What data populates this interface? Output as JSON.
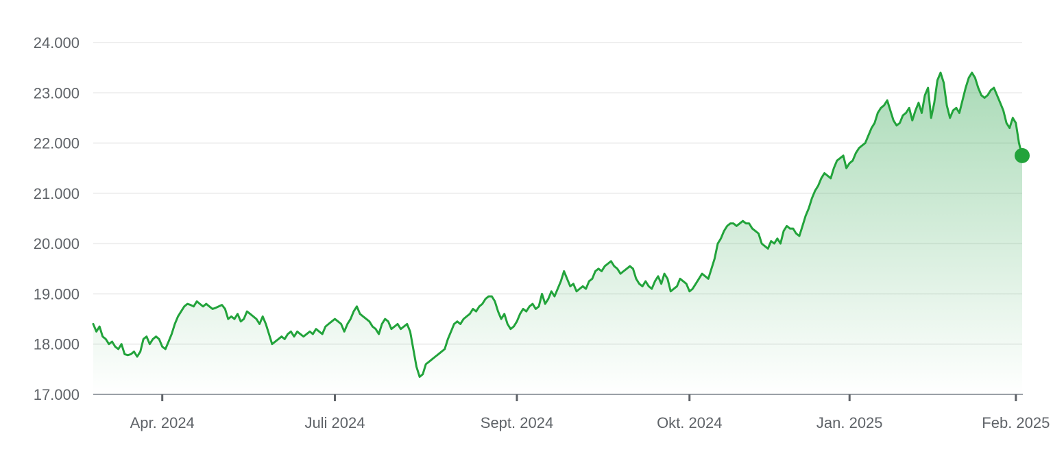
{
  "chart_data": {
    "type": "area",
    "title": "",
    "xlabel": "",
    "ylabel": "",
    "ylim": [
      17000,
      24000
    ],
    "grid": true,
    "legend": "none",
    "colors": {
      "line": "#22a33b",
      "fill": "#34a853",
      "grid": "#efefef",
      "axis": "#9aa0a6",
      "text": "#5f6368"
    },
    "y_ticks": [
      {
        "value": 17000,
        "label": "17.000"
      },
      {
        "value": 18000,
        "label": "18.000"
      },
      {
        "value": 19000,
        "label": "19.000"
      },
      {
        "value": 20000,
        "label": "20.000"
      },
      {
        "value": 21000,
        "label": "21.000"
      },
      {
        "value": 22000,
        "label": "22.000"
      },
      {
        "value": 23000,
        "label": "23.000"
      },
      {
        "value": 24000,
        "label": "24.000"
      }
    ],
    "x_ticks": [
      {
        "index": 22,
        "label": "Apr. 2024"
      },
      {
        "index": 77,
        "label": "Juli 2024"
      },
      {
        "index": 135,
        "label": "Sept. 2024"
      },
      {
        "index": 190,
        "label": "Okt. 2024"
      },
      {
        "index": 241,
        "label": "Jan. 2025"
      },
      {
        "index": 294,
        "label": "Feb. 2025"
      }
    ],
    "series": [
      {
        "values": [
          18400,
          18250,
          18350,
          18150,
          18100,
          18000,
          18050,
          17950,
          17900,
          18000,
          17800,
          17780,
          17800,
          17850,
          17750,
          17850,
          18100,
          18150,
          18000,
          18100,
          18150,
          18100,
          17950,
          17900,
          18050,
          18200,
          18400,
          18550,
          18650,
          18750,
          18800,
          18780,
          18750,
          18850,
          18800,
          18750,
          18800,
          18750,
          18700,
          18720,
          18750,
          18780,
          18700,
          18500,
          18550,
          18500,
          18600,
          18450,
          18500,
          18650,
          18600,
          18550,
          18500,
          18400,
          18550,
          18400,
          18200,
          18000,
          18050,
          18100,
          18150,
          18100,
          18200,
          18250,
          18150,
          18250,
          18200,
          18150,
          18200,
          18250,
          18200,
          18300,
          18250,
          18200,
          18350,
          18400,
          18450,
          18500,
          18450,
          18400,
          18250,
          18400,
          18500,
          18650,
          18750,
          18600,
          18550,
          18500,
          18450,
          18350,
          18300,
          18200,
          18400,
          18500,
          18450,
          18300,
          18350,
          18400,
          18300,
          18350,
          18400,
          18250,
          17900,
          17550,
          17350,
          17400,
          17600,
          17650,
          17700,
          17750,
          17800,
          17850,
          17900,
          18100,
          18250,
          18400,
          18450,
          18400,
          18500,
          18550,
          18600,
          18700,
          18650,
          18750,
          18800,
          18900,
          18950,
          18950,
          18850,
          18650,
          18500,
          18600,
          18400,
          18300,
          18350,
          18450,
          18600,
          18700,
          18650,
          18750,
          18800,
          18700,
          18750,
          19000,
          18800,
          18900,
          19050,
          18950,
          19100,
          19250,
          19450,
          19300,
          19150,
          19200,
          19050,
          19100,
          19150,
          19100,
          19250,
          19300,
          19450,
          19500,
          19450,
          19550,
          19600,
          19650,
          19550,
          19500,
          19400,
          19450,
          19500,
          19550,
          19500,
          19300,
          19200,
          19150,
          19250,
          19150,
          19100,
          19250,
          19350,
          19200,
          19400,
          19300,
          19050,
          19100,
          19150,
          19300,
          19250,
          19200,
          19050,
          19100,
          19200,
          19300,
          19400,
          19350,
          19300,
          19500,
          19700,
          20000,
          20100,
          20250,
          20350,
          20400,
          20400,
          20350,
          20400,
          20450,
          20400,
          20400,
          20300,
          20250,
          20200,
          20000,
          19950,
          19900,
          20050,
          20000,
          20100,
          20000,
          20250,
          20350,
          20300,
          20300,
          20200,
          20150,
          20350,
          20550,
          20700,
          20900,
          21050,
          21150,
          21300,
          21400,
          21350,
          21300,
          21500,
          21650,
          21700,
          21750,
          21500,
          21600,
          21650,
          21800,
          21900,
          21950,
          22000,
          22150,
          22300,
          22400,
          22600,
          22700,
          22750,
          22850,
          22650,
          22450,
          22350,
          22400,
          22550,
          22600,
          22700,
          22450,
          22650,
          22800,
          22600,
          22950,
          23100,
          22500,
          22800,
          23250,
          23400,
          23200,
          22750,
          22500,
          22650,
          22700,
          22600,
          22850,
          23100,
          23300,
          23400,
          23300,
          23100,
          22950,
          22900,
          22950,
          23050,
          23100,
          22950,
          22800,
          22650,
          22400,
          22300,
          22500,
          22400,
          22000,
          21750
        ],
        "last_point_marker": true
      }
    ]
  }
}
